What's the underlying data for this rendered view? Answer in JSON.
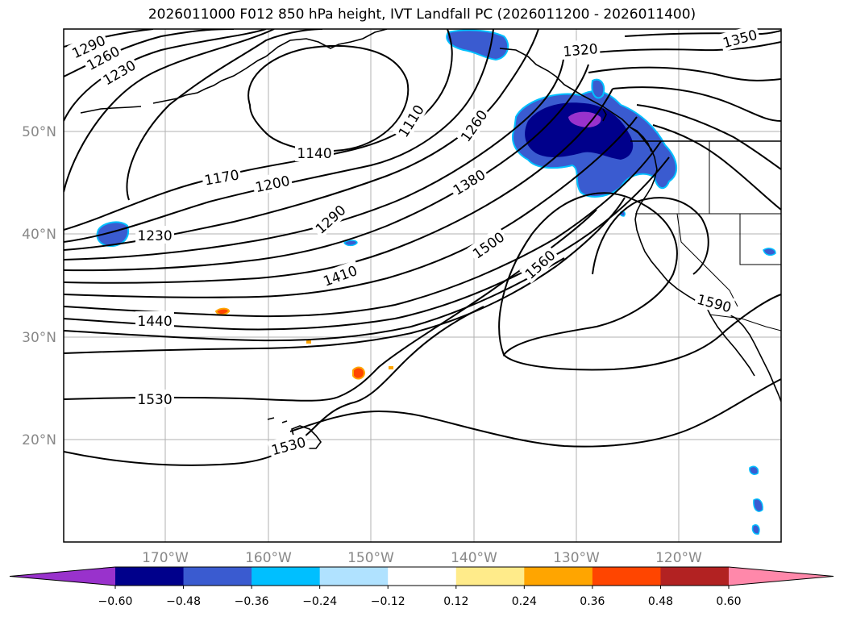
{
  "title": "2026011000 F012 850 hPa height, IVT Landfall PC (2026011200 - 2026011400)",
  "map": {
    "lat_labels": [
      "50°N",
      "40°N",
      "30°N",
      "20°N"
    ],
    "lon_labels": [
      "170°W",
      "160°W",
      "150°W",
      "140°W",
      "130°W",
      "120°W"
    ],
    "contour_labels": [
      "1290",
      "1260",
      "1230",
      "1110",
      "1260",
      "1320",
      "1350",
      "1140",
      "1170",
      "1200",
      "1380",
      "1290",
      "1230",
      "1500",
      "1410",
      "1560",
      "1590",
      "1440",
      "1530",
      "1530"
    ],
    "contour_color": "#000000",
    "gridline_color": "#b0b0b0"
  },
  "colorbar": {
    "ticks": [
      "−0.60",
      "−0.48",
      "−0.36",
      "−0.24",
      "−0.12",
      "0.12",
      "0.24",
      "0.36",
      "0.48",
      "0.60"
    ],
    "colors": [
      "#9932cc",
      "#00008b",
      "#3a5bd0",
      "#00bfff",
      "#b0e2ff",
      "#ffffff",
      "#ffeb8a",
      "#ffa500",
      "#ff4500",
      "#b22222",
      "#ff88aa"
    ]
  }
}
